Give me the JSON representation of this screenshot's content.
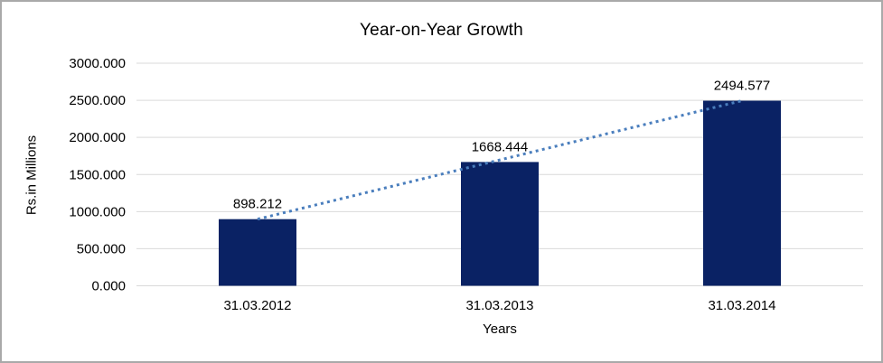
{
  "frame": {
    "border_color": "#a9a9a9",
    "background": "#ffffff"
  },
  "chart_data": {
    "type": "bar",
    "title": "Year-on-Year Growth",
    "xlabel": "Years",
    "ylabel": "Rs.in Millions",
    "categories": [
      "31.03.2012",
      "31.03.2013",
      "31.03.2014"
    ],
    "values": [
      898.212,
      1668.444,
      2494.577
    ],
    "data_labels": [
      "898.212",
      "1668.444",
      "2494.577"
    ],
    "ytick_labels": [
      "0.000",
      "500.000",
      "1000.000",
      "1500.000",
      "2000.000",
      "2500.000",
      "3000.000"
    ],
    "ylim": [
      0,
      3000
    ],
    "ytick_step": 500,
    "grid": true,
    "legend": "none",
    "trendline": {
      "style": "dotted",
      "spans": "first-bar-center-to-last-bar-center",
      "in_front_of_bars": true
    },
    "colors": {
      "bar": "#0a2264",
      "trendline": "#4a7ebd",
      "gridline": "#d9d9d9",
      "text": "#000000"
    }
  }
}
